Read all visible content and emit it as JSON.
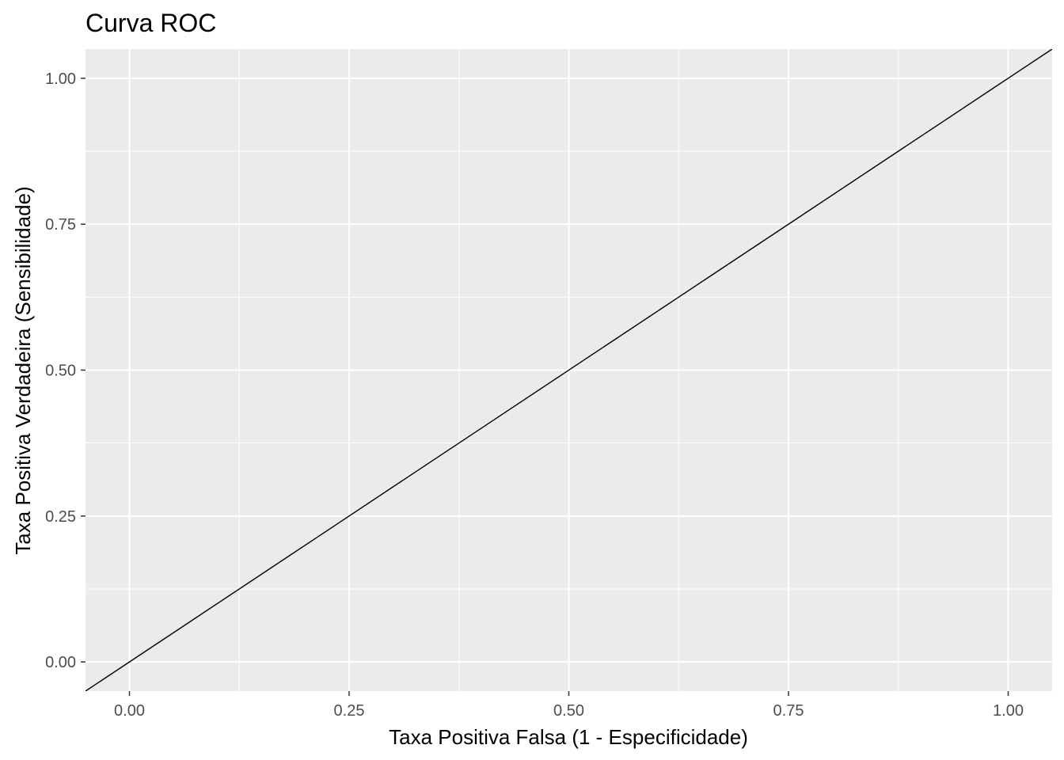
{
  "chart_data": {
    "type": "line",
    "title": "Curva ROC",
    "xlabel": "Taxa Positiva Falsa (1 - Especificidade)",
    "ylabel": "Taxa Positiva Verdadeira (Sensibilidade)",
    "xlim": [
      -0.05,
      1.05
    ],
    "ylim": [
      -0.05,
      1.05
    ],
    "x_ticks": [
      0,
      0.25,
      0.5,
      0.75,
      1
    ],
    "x_tick_labels": [
      "0.00",
      "0.25",
      "0.50",
      "0.75",
      "1.00"
    ],
    "y_ticks": [
      0,
      0.25,
      0.5,
      0.75,
      1
    ],
    "y_tick_labels": [
      "0.00",
      "0.25",
      "0.50",
      "0.75",
      "1.00"
    ],
    "grid": true,
    "background_color": "#ebebeb",
    "grid_color": "#ffffff",
    "line_color": "#000000",
    "series": [
      {
        "type": "abline",
        "intercept": 0,
        "slope": 1
      }
    ]
  }
}
